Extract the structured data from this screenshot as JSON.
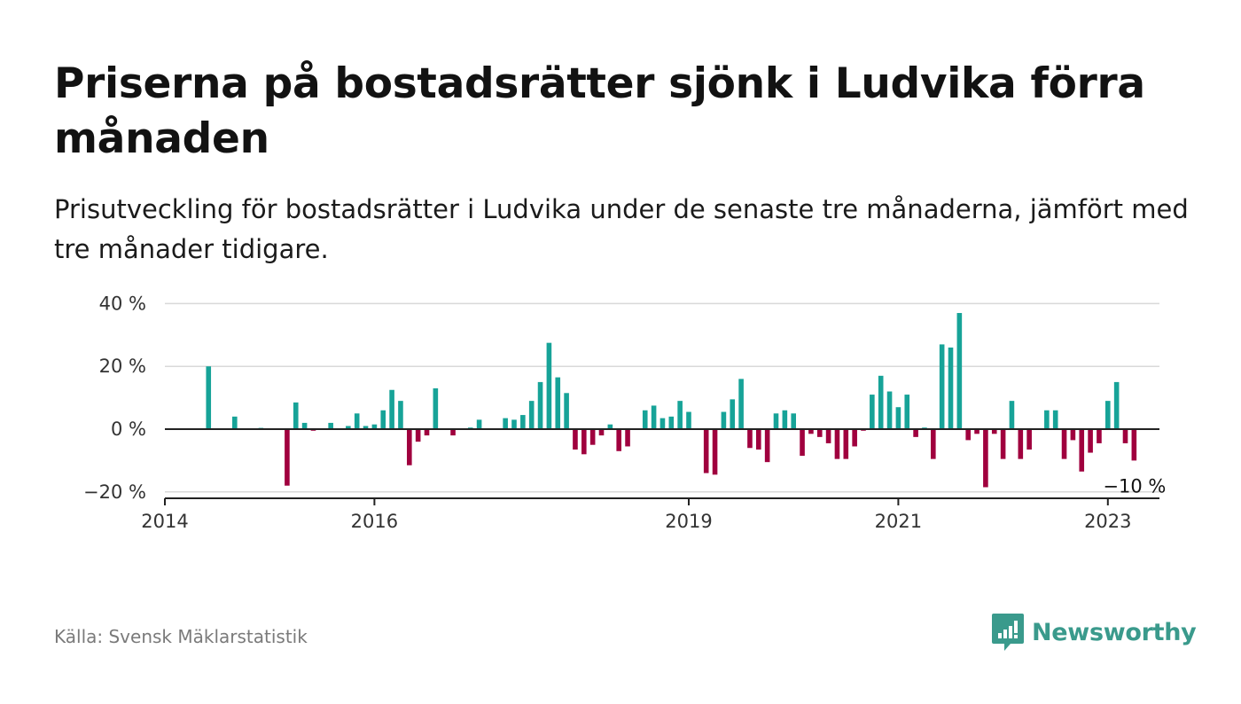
{
  "title": "Priserna på bostadsrätter sjönk i Ludvika förra månaden",
  "subtitle": "Prisutveckling för bostadsrätter i Ludvika under de senaste tre månaderna, jämfört med tre månader tidigare.",
  "source": "Källa: Svensk Mäklarstatistik",
  "brand": {
    "name": "Newsworthy",
    "icon": "newsworthy-logo-icon"
  },
  "colors": {
    "positive": "#17a398",
    "negative": "#a0003e",
    "grid": "#d9d9d9",
    "axis": "#222222"
  },
  "chart_data": {
    "type": "bar",
    "x_unit": "month",
    "x_start": "2014-01",
    "ylim": [
      -22,
      40
    ],
    "y_ticks": [
      40,
      20,
      0,
      -20
    ],
    "y_tick_labels": [
      "40 %",
      "20 %",
      "0 %",
      "−20 %"
    ],
    "x_ticks": [
      "2014-01",
      "2016-01",
      "2019-01",
      "2021-01",
      "2023-01"
    ],
    "x_tick_labels": [
      "2014",
      "2016",
      "2019",
      "2021",
      "2023"
    ],
    "end_label": "−10 %",
    "points": [
      [
        "2014-06",
        20
      ],
      [
        "2014-09",
        4
      ],
      [
        "2014-12",
        0.4
      ],
      [
        "2015-03",
        -18
      ],
      [
        "2015-04",
        8.5
      ],
      [
        "2015-05",
        2
      ],
      [
        "2015-06",
        -0.5
      ],
      [
        "2015-08",
        2
      ],
      [
        "2015-10",
        1
      ],
      [
        "2015-11",
        5
      ],
      [
        "2015-12",
        1
      ],
      [
        "2016-01",
        1.5
      ],
      [
        "2016-02",
        6
      ],
      [
        "2016-03",
        12.5
      ],
      [
        "2016-04",
        9
      ],
      [
        "2016-05",
        -11.5
      ],
      [
        "2016-06",
        -4
      ],
      [
        "2016-07",
        -2
      ],
      [
        "2016-08",
        13
      ],
      [
        "2016-10",
        -2
      ],
      [
        "2016-12",
        0.5
      ],
      [
        "2017-01",
        3
      ],
      [
        "2017-04",
        3.5
      ],
      [
        "2017-05",
        3
      ],
      [
        "2017-06",
        4.5
      ],
      [
        "2017-07",
        9
      ],
      [
        "2017-08",
        15
      ],
      [
        "2017-09",
        27.5
      ],
      [
        "2017-10",
        16.5
      ],
      [
        "2017-11",
        11.5
      ],
      [
        "2017-12",
        -6.5
      ],
      [
        "2018-01",
        -8
      ],
      [
        "2018-02",
        -5
      ],
      [
        "2018-03",
        -2
      ],
      [
        "2018-04",
        1.5
      ],
      [
        "2018-05",
        -7
      ],
      [
        "2018-06",
        -5.5
      ],
      [
        "2018-08",
        6
      ],
      [
        "2018-09",
        7.5
      ],
      [
        "2018-10",
        3.5
      ],
      [
        "2018-11",
        4
      ],
      [
        "2018-12",
        9
      ],
      [
        "2019-01",
        5.5
      ],
      [
        "2019-03",
        -14
      ],
      [
        "2019-04",
        -14.5
      ],
      [
        "2019-05",
        5.5
      ],
      [
        "2019-06",
        9.5
      ],
      [
        "2019-07",
        16
      ],
      [
        "2019-08",
        -6
      ],
      [
        "2019-09",
        -6.5
      ],
      [
        "2019-10",
        -10.5
      ],
      [
        "2019-11",
        5
      ],
      [
        "2019-12",
        6
      ],
      [
        "2020-01",
        5
      ],
      [
        "2020-02",
        -8.5
      ],
      [
        "2020-03",
        -1.5
      ],
      [
        "2020-04",
        -2.5
      ],
      [
        "2020-05",
        -4.5
      ],
      [
        "2020-06",
        -9.5
      ],
      [
        "2020-07",
        -9.5
      ],
      [
        "2020-08",
        -5.5
      ],
      [
        "2020-09",
        -0.5
      ],
      [
        "2020-10",
        11
      ],
      [
        "2020-11",
        17
      ],
      [
        "2020-12",
        12
      ],
      [
        "2021-01",
        7
      ],
      [
        "2021-02",
        11
      ],
      [
        "2021-03",
        -2.5
      ],
      [
        "2021-04",
        0.5
      ],
      [
        "2021-05",
        -9.5
      ],
      [
        "2021-06",
        27
      ],
      [
        "2021-07",
        26
      ],
      [
        "2021-08",
        37
      ],
      [
        "2021-09",
        -3.5
      ],
      [
        "2021-10",
        -1.5
      ],
      [
        "2021-11",
        -18.5
      ],
      [
        "2021-12",
        -1.5
      ],
      [
        "2022-01",
        -9.5
      ],
      [
        "2022-02",
        9
      ],
      [
        "2022-03",
        -9.5
      ],
      [
        "2022-04",
        -6.5
      ],
      [
        "2022-06",
        6
      ],
      [
        "2022-07",
        6
      ],
      [
        "2022-08",
        -9.5
      ],
      [
        "2022-09",
        -3.5
      ],
      [
        "2022-10",
        -13.5
      ],
      [
        "2022-11",
        -7.5
      ],
      [
        "2022-12",
        -4.5
      ],
      [
        "2023-01",
        9
      ],
      [
        "2023-02",
        15
      ],
      [
        "2023-03",
        -4.5
      ],
      [
        "2023-04",
        -10
      ]
    ]
  }
}
